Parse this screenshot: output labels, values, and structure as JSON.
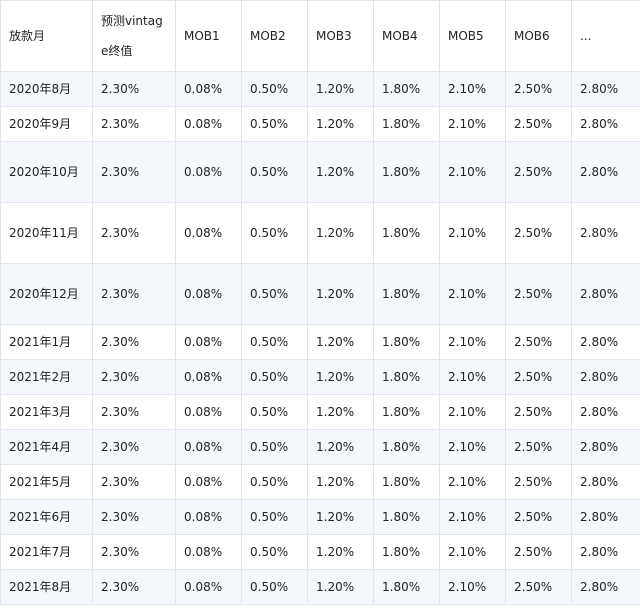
{
  "table": {
    "headers": [
      "放款月",
      "预测vintage终值",
      "MOB1",
      "MOB2",
      "MOB3",
      "MOB4",
      "MOB5",
      "MOB6",
      "..."
    ],
    "rows": [
      [
        "2020年8月",
        "2.30%",
        "0.08%",
        "0.50%",
        "1.20%",
        "1.80%",
        "2.10%",
        "2.50%",
        "2.80%"
      ],
      [
        "2020年9月",
        "2.30%",
        "0.08%",
        "0.50%",
        "1.20%",
        "1.80%",
        "2.10%",
        "2.50%",
        "2.80%"
      ],
      [
        "2020年10月",
        "2.30%",
        "0.08%",
        "0.50%",
        "1.20%",
        "1.80%",
        "2.10%",
        "2.50%",
        "2.80%"
      ],
      [
        "2020年11月",
        "2.30%",
        "0.08%",
        "0.50%",
        "1.20%",
        "1.80%",
        "2.10%",
        "2.50%",
        "2.80%"
      ],
      [
        "2020年12月",
        "2.30%",
        "0.08%",
        "0.50%",
        "1.20%",
        "1.80%",
        "2.10%",
        "2.50%",
        "2.80%"
      ],
      [
        "2021年1月",
        "2.30%",
        "0.08%",
        "0.50%",
        "1.20%",
        "1.80%",
        "2.10%",
        "2.50%",
        "2.80%"
      ],
      [
        "2021年2月",
        "2.30%",
        "0.08%",
        "0.50%",
        "1.20%",
        "1.80%",
        "2.10%",
        "2.50%",
        "2.80%"
      ],
      [
        "2021年3月",
        "2.30%",
        "0.08%",
        "0.50%",
        "1.20%",
        "1.80%",
        "2.10%",
        "2.50%",
        "2.80%"
      ],
      [
        "2021年4月",
        "2.30%",
        "0.08%",
        "0.50%",
        "1.20%",
        "1.80%",
        "2.10%",
        "2.50%",
        "2.80%"
      ],
      [
        "2021年5月",
        "2.30%",
        "0.08%",
        "0.50%",
        "1.20%",
        "1.80%",
        "2.10%",
        "2.50%",
        "2.80%"
      ],
      [
        "2021年6月",
        "2.30%",
        "0.08%",
        "0.50%",
        "1.20%",
        "1.80%",
        "2.10%",
        "2.50%",
        "2.80%"
      ],
      [
        "2021年7月",
        "2.30%",
        "0.08%",
        "0.50%",
        "1.20%",
        "1.80%",
        "2.10%",
        "2.50%",
        "2.80%"
      ],
      [
        "2021年8月",
        "2.30%",
        "0.08%",
        "0.50%",
        "1.20%",
        "1.80%",
        "2.10%",
        "2.50%",
        "2.80%"
      ]
    ]
  },
  "colors": {
    "border": "#e1e4ea",
    "stripe": "#f4f8fc",
    "text": "#222222"
  }
}
